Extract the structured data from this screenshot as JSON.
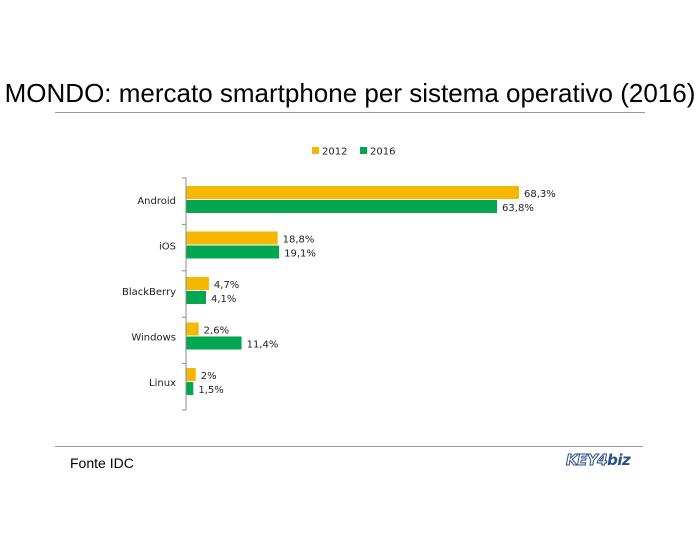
{
  "header": {
    "title": "MONDO: mercato smartphone per sistema operativo (2016)"
  },
  "footer": {
    "source": "Fonte IDC",
    "logo": "KEY4biz"
  },
  "colors": {
    "series_2012": "#f5b800",
    "series_2016": "#00a650",
    "axis": "#8c8c8c"
  },
  "chart_data": {
    "type": "bar",
    "orientation": "horizontal",
    "categories": [
      "Android",
      "iOS",
      "BlackBerry",
      "Windows",
      "Linux"
    ],
    "series": [
      {
        "name": "2012",
        "values": [
          68.3,
          18.8,
          4.7,
          2.6,
          2.0
        ],
        "labels": [
          "68,3%",
          "18,8%",
          "4,7%",
          "2,6%",
          "2%"
        ]
      },
      {
        "name": "2016",
        "values": [
          63.8,
          19.1,
          4.1,
          11.4,
          1.5
        ],
        "labels": [
          "63,8%",
          "19,1%",
          "4,1%",
          "11,4%",
          "1,5%"
        ]
      }
    ],
    "legend_position": "top",
    "grid": false,
    "xlim": [
      0,
      70
    ]
  }
}
